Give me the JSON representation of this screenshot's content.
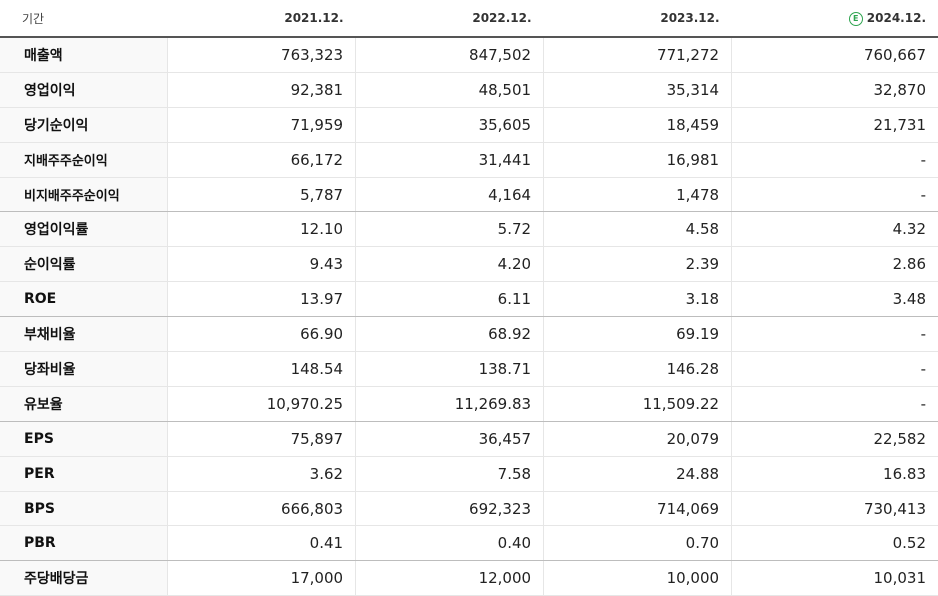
{
  "header": {
    "period_label": "기간",
    "years": [
      "2021.12.",
      "2022.12.",
      "2023.12.",
      "2024.12."
    ],
    "estimate_icon_glyph": "E"
  },
  "rows": [
    {
      "label": "매출액",
      "values": [
        "763,323",
        "847,502",
        "771,272",
        "760,667"
      ]
    },
    {
      "label": "영업이익",
      "values": [
        "92,381",
        "48,501",
        "35,314",
        "32,870"
      ]
    },
    {
      "label": "당기순이익",
      "values": [
        "71,959",
        "35,605",
        "18,459",
        "21,731"
      ]
    },
    {
      "label": "지배주주순이익",
      "values": [
        "66,172",
        "31,441",
        "16,981",
        "-"
      ]
    },
    {
      "label": "비지배주주순이익",
      "values": [
        "5,787",
        "4,164",
        "1,478",
        "-"
      ]
    },
    {
      "label": "영업이익률",
      "values": [
        "12.10",
        "5.72",
        "4.58",
        "4.32"
      ]
    },
    {
      "label": "순이익률",
      "values": [
        "9.43",
        "4.20",
        "2.39",
        "2.86"
      ]
    },
    {
      "label": "ROE",
      "values": [
        "13.97",
        "6.11",
        "3.18",
        "3.48"
      ]
    },
    {
      "label": "부채비율",
      "values": [
        "66.90",
        "68.92",
        "69.19",
        "-"
      ]
    },
    {
      "label": "당좌비율",
      "values": [
        "148.54",
        "138.71",
        "146.28",
        "-"
      ]
    },
    {
      "label": "유보율",
      "values": [
        "10,970.25",
        "11,269.83",
        "11,509.22",
        "-"
      ]
    },
    {
      "label": "EPS",
      "values": [
        "75,897",
        "36,457",
        "20,079",
        "22,582"
      ]
    },
    {
      "label": "PER",
      "values": [
        "3.62",
        "7.58",
        "24.88",
        "16.83"
      ]
    },
    {
      "label": "BPS",
      "values": [
        "666,803",
        "692,323",
        "714,069",
        "730,413"
      ]
    },
    {
      "label": "PBR",
      "values": [
        "0.41",
        "0.40",
        "0.70",
        "0.52"
      ]
    },
    {
      "label": "주당배당금",
      "values": [
        "17,000",
        "12,000",
        "10,000",
        "10,031"
      ]
    }
  ]
}
